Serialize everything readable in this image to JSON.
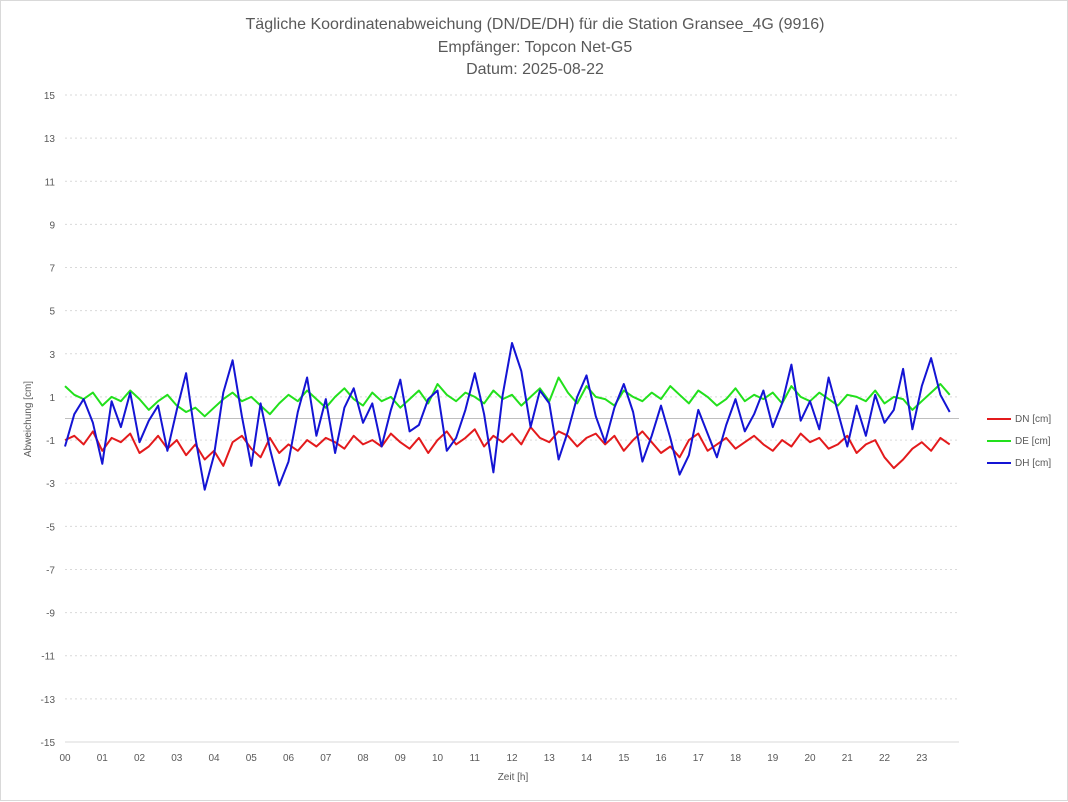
{
  "chart_data": {
    "type": "line",
    "title": [
      "Tägliche Koordinatenabweichung (DN/DE/DH) für die Station Gransee_4G (9916)",
      "Empfänger: Topcon Net-G5",
      "Datum: 2025-08-22"
    ],
    "xlabel": "Zeit [h]",
    "ylabel": "Abweichung [cm]",
    "xlim": [
      0,
      24
    ],
    "ylim": [
      -15,
      15
    ],
    "x_ticks": [
      "00",
      "01",
      "02",
      "03",
      "04",
      "05",
      "06",
      "07",
      "08",
      "09",
      "10",
      "11",
      "12",
      "13",
      "14",
      "15",
      "16",
      "17",
      "18",
      "19",
      "20",
      "21",
      "22",
      "23"
    ],
    "y_ticks": [
      15,
      13,
      11,
      9,
      7,
      5,
      3,
      1,
      -1,
      -3,
      -5,
      -7,
      -9,
      -11,
      -13,
      -15
    ],
    "grid": "horizontal dotted",
    "legend_position": "right",
    "x_sample_step_h": 0.25,
    "series": [
      {
        "name": "DN [cm]",
        "color": "#e31a1c",
        "values": [
          -1.0,
          -0.8,
          -1.2,
          -0.6,
          -1.5,
          -0.9,
          -1.1,
          -0.7,
          -1.6,
          -1.3,
          -0.8,
          -1.4,
          -1.0,
          -1.7,
          -1.2,
          -1.9,
          -1.5,
          -2.2,
          -1.1,
          -0.8,
          -1.4,
          -1.8,
          -0.9,
          -1.6,
          -1.2,
          -1.5,
          -1.0,
          -1.3,
          -0.9,
          -1.1,
          -1.4,
          -0.8,
          -1.2,
          -1.0,
          -1.3,
          -0.7,
          -1.1,
          -1.4,
          -0.9,
          -1.6,
          -1.0,
          -0.6,
          -1.2,
          -0.9,
          -0.5,
          -1.3,
          -0.8,
          -1.1,
          -0.7,
          -1.2,
          -0.4,
          -0.9,
          -1.1,
          -0.6,
          -0.8,
          -1.3,
          -0.9,
          -0.7,
          -1.2,
          -0.8,
          -1.5,
          -1.0,
          -0.6,
          -1.1,
          -1.6,
          -1.3,
          -1.8,
          -1.0,
          -0.7,
          -1.5,
          -1.2,
          -0.9,
          -1.4,
          -1.1,
          -0.8,
          -1.2,
          -1.5,
          -1.0,
          -1.3,
          -0.7,
          -1.1,
          -0.9,
          -1.4,
          -1.2,
          -0.8,
          -1.6,
          -1.2,
          -1.0,
          -1.8,
          -2.3,
          -1.9,
          -1.4,
          -1.1,
          -1.5,
          -0.9,
          -1.2
        ]
      },
      {
        "name": "DE [cm]",
        "color": "#22e01c",
        "values": [
          1.5,
          1.1,
          0.9,
          1.2,
          0.6,
          1.0,
          0.8,
          1.3,
          0.9,
          0.4,
          0.8,
          1.1,
          0.6,
          0.3,
          0.5,
          0.1,
          0.5,
          0.9,
          1.2,
          0.8,
          1.0,
          0.6,
          0.2,
          0.7,
          1.1,
          0.8,
          1.3,
          0.9,
          0.5,
          1.0,
          1.4,
          0.9,
          0.6,
          1.2,
          0.8,
          1.0,
          0.5,
          0.9,
          1.3,
          0.7,
          1.6,
          1.1,
          0.8,
          1.2,
          1.0,
          0.7,
          1.3,
          0.9,
          1.1,
          0.6,
          1.0,
          1.4,
          0.8,
          1.9,
          1.2,
          0.7,
          1.5,
          1.0,
          0.9,
          0.6,
          1.3,
          1.0,
          0.8,
          1.2,
          0.9,
          1.5,
          1.1,
          0.7,
          1.3,
          1.0,
          0.6,
          0.9,
          1.4,
          0.8,
          1.1,
          0.9,
          1.2,
          0.7,
          1.5,
          1.0,
          0.8,
          1.2,
          0.9,
          0.6,
          1.1,
          1.0,
          0.8,
          1.3,
          0.7,
          1.0,
          0.9,
          0.4,
          0.8,
          1.2,
          1.6,
          1.1
        ]
      },
      {
        "name": "DH [cm]",
        "color": "#1414d4",
        "values": [
          -1.3,
          0.2,
          0.9,
          -0.2,
          -2.1,
          0.8,
          -0.4,
          1.2,
          -1.1,
          -0.1,
          0.6,
          -1.5,
          0.4,
          2.1,
          -0.9,
          -3.3,
          -1.7,
          1.2,
          2.7,
          0.1,
          -2.2,
          0.7,
          -1.4,
          -3.1,
          -2.0,
          0.3,
          1.9,
          -0.8,
          0.9,
          -1.6,
          0.5,
          1.4,
          -0.2,
          0.7,
          -1.3,
          0.4,
          1.8,
          -0.6,
          -0.3,
          0.9,
          1.3,
          -1.5,
          -0.9,
          0.4,
          2.1,
          0.2,
          -2.5,
          1.1,
          3.5,
          2.2,
          -0.4,
          1.3,
          0.7,
          -1.9,
          -0.6,
          1.0,
          2.0,
          0.1,
          -1.1,
          0.5,
          1.6,
          0.3,
          -2.0,
          -0.8,
          0.6,
          -0.9,
          -2.6,
          -1.7,
          0.4,
          -0.7,
          -1.8,
          -0.3,
          0.9,
          -0.6,
          0.2,
          1.3,
          -0.4,
          0.7,
          2.5,
          -0.1,
          0.8,
          -0.5,
          1.9,
          0.3,
          -1.3,
          0.6,
          -0.8,
          1.1,
          -0.2,
          0.4,
          2.3,
          -0.5,
          1.5,
          2.8,
          1.1,
          0.3
        ]
      }
    ]
  }
}
